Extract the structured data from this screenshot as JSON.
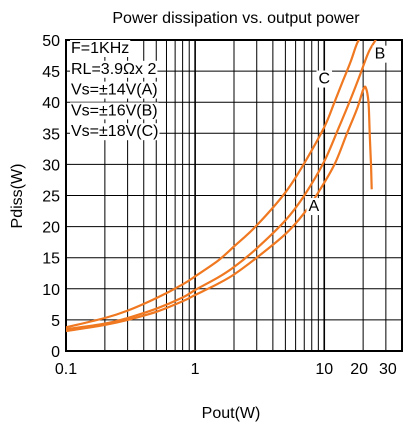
{
  "chart_data": {
    "type": "line",
    "title": "Power dissipation vs. output power",
    "xlabel": "Pout(W)",
    "ylabel": "Pdiss(W)",
    "x_scale": "log",
    "xlim": [
      0.1,
      40
    ],
    "ylim": [
      0,
      50
    ],
    "x_ticks": [
      {
        "value": 0.1,
        "label": "0.1"
      },
      {
        "value": 1,
        "label": "1"
      },
      {
        "value": 10,
        "label": "10"
      },
      {
        "value": 20,
        "label": "20"
      },
      {
        "value": 30,
        "label": "30"
      }
    ],
    "y_ticks": [
      {
        "value": 0,
        "label": "0"
      },
      {
        "value": 5,
        "label": "5"
      },
      {
        "value": 10,
        "label": "10"
      },
      {
        "value": 15,
        "label": "15"
      },
      {
        "value": 20,
        "label": "20"
      },
      {
        "value": 25,
        "label": "25"
      },
      {
        "value": 30,
        "label": "30"
      },
      {
        "value": 35,
        "label": "35"
      },
      {
        "value": 40,
        "label": "40"
      },
      {
        "value": 45,
        "label": "45"
      },
      {
        "value": 50,
        "label": "50"
      }
    ],
    "grid": true,
    "conditions": [
      "F=1KHz",
      "RL=3.9Ωx 2",
      "Vs=±14V(A)",
      "Vs=±16V(B)",
      "Vs=±18V(C)"
    ],
    "line_color": "#f07820",
    "series": [
      {
        "name": "A",
        "x": [
          0.1,
          0.2,
          0.3,
          0.5,
          0.8,
          1,
          1.5,
          2,
          3,
          5,
          7,
          9,
          12,
          15,
          18,
          20,
          21,
          22,
          22.5,
          23,
          23.3
        ],
        "y": [
          3.2,
          4.2,
          5.0,
          6.3,
          8.0,
          9.0,
          10.8,
          12.3,
          15.0,
          18.8,
          22.2,
          25.5,
          30.0,
          35.0,
          39.0,
          42.0,
          42.3,
          40.0,
          35.0,
          30.0,
          26.0
        ]
      },
      {
        "name": "B",
        "x": [
          0.1,
          0.2,
          0.3,
          0.5,
          0.8,
          1,
          1.5,
          2,
          3,
          5,
          7,
          10,
          13,
          16,
          19,
          22,
          25,
          26.5
        ],
        "y": [
          3.5,
          4.4,
          5.3,
          6.8,
          8.6,
          9.8,
          11.8,
          13.5,
          16.5,
          21.0,
          25.0,
          30.5,
          36.0,
          40.5,
          44.5,
          48.0,
          50.0,
          51.0
        ]
      },
      {
        "name": "C",
        "x": [
          0.1,
          0.2,
          0.3,
          0.5,
          0.8,
          1,
          1.5,
          2,
          3,
          5,
          7,
          10,
          12,
          14,
          16,
          18,
          20
        ],
        "y": [
          3.8,
          5.3,
          6.5,
          8.5,
          10.7,
          12.0,
          14.5,
          16.8,
          20.2,
          25.5,
          30.2,
          36.0,
          40.0,
          43.5,
          46.5,
          49.5,
          51.0
        ]
      }
    ],
    "curve_labels": [
      {
        "text": "A",
        "x": 8.3,
        "y": 22.5
      },
      {
        "text": "B",
        "x": 27.0,
        "y": 47.0
      },
      {
        "text": "C",
        "x": 10.0,
        "y": 43.0
      }
    ]
  }
}
